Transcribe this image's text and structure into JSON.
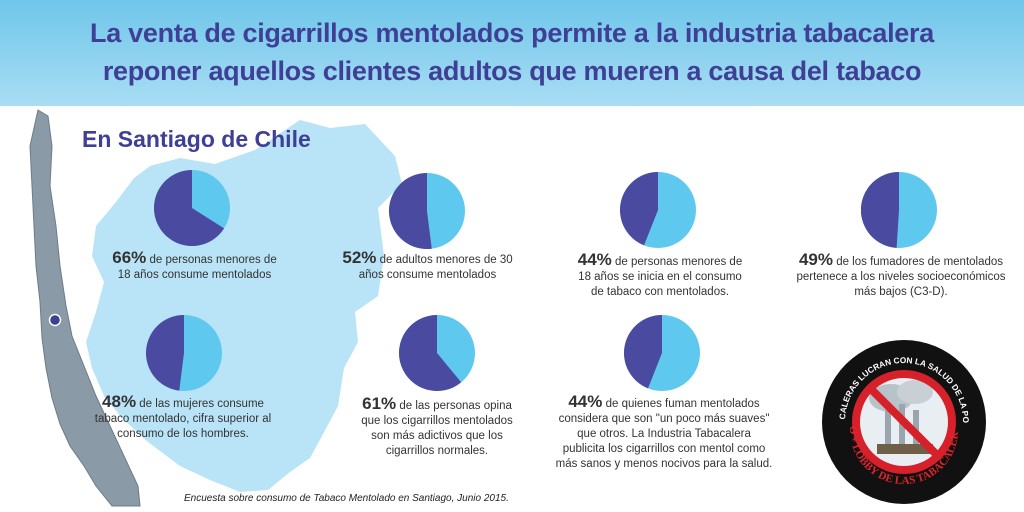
{
  "title": {
    "line1": "La venta de cigarrillos mentolados permite a la industria tabacalera",
    "line2": "reponer aquellos clientes adultos que mueren a causa del tabaco"
  },
  "region_label": "En Santiago de Chile",
  "source": "Encuesta sobre consumo de Tabaco Mentolado en Santiago, Junio 2015.",
  "colors": {
    "dark": "#4a4aa0",
    "light": "#5fc8ee",
    "title": "#3e3f95",
    "map": "#b9e3f6"
  },
  "chart_data": {
    "type": "pie",
    "items": [
      {
        "value": 66,
        "pct_label": "66%",
        "text": "de personas menores de 18 años consume mentolados"
      },
      {
        "value": 52,
        "pct_label": "52%",
        "text": "de adultos menores de 30 años consume mentolados"
      },
      {
        "value": 44,
        "pct_label": "44%",
        "text": "de personas menores de 18 años se inicia en  el consumo de tabaco con mentolados."
      },
      {
        "value": 49,
        "pct_label": "49%",
        "text": "de los fumadores de mentolados pertenece a los niveles socioeconómicos más bajos (C3-D)."
      },
      {
        "value": 48,
        "pct_label": "48%",
        "text": "de las mujeres consume tabaco mentolado, cifra superior al consumo de los hombres."
      },
      {
        "value": 61,
        "pct_label": "61%",
        "text": "de las personas opina que los cigarrillos mentolados son más adictivos que los cigarrillos normales."
      },
      {
        "value": 44,
        "pct_label": "44%",
        "text": "de quienes fuman mentolados considera que son \"un poco más suaves\" que otros. La Industria Tabacalera publicita los cigarrillos con mentol como más sanos y menos nocivos para la salud."
      }
    ]
  },
  "badge": {
    "top_text": "LAS TABACALERAS LUCRAN CON LA SALUD DE LA POBLACIÓN",
    "bottom_text": "NO + LOBBY DE LAS TABACALERAS"
  }
}
